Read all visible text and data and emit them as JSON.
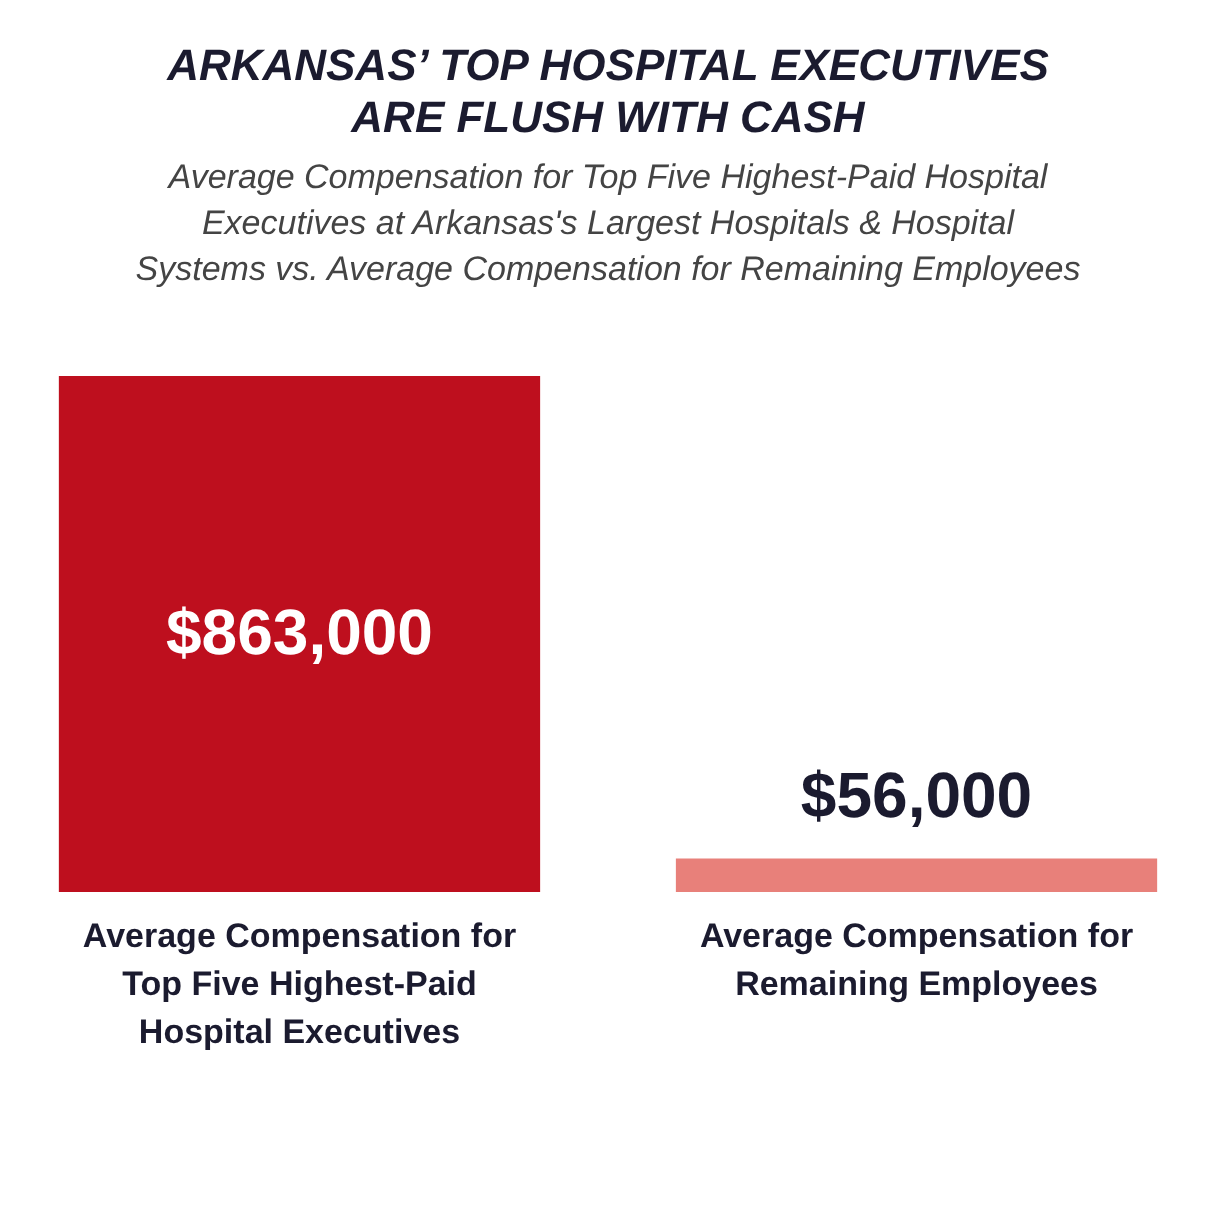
{
  "chart_data": {
    "type": "bar",
    "title": "ARKANSAS’ TOP HOSPITAL EXECUTIVES ARE FLUSH WITH CASH",
    "subtitle": "Average Compensation for Top Five Highest-Paid Hospital Executives at Arkansas's Largest Hospitals & Hospital Systems vs. Average Compensation for Remaining Employees",
    "categories": [
      "Average Compensation for Top Five Highest-Paid Hospital Executives",
      "Average Compensation for Remaining Employees"
    ],
    "values": [
      863000,
      56000
    ],
    "colors": [
      "#be0f1e",
      "#e8807a"
    ],
    "value_labels": [
      "$863,000",
      "$56,000"
    ],
    "tick_labels": "x"
  }
}
